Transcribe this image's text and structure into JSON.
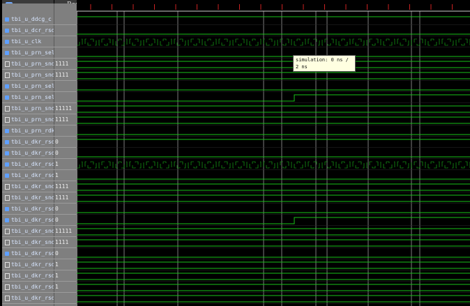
{
  "header": {
    "value_column_label": "Rap"
  },
  "signals": [
    {
      "name": "tbi_u_ddcg_c",
      "value": "",
      "kind": "bit",
      "wave": "high"
    },
    {
      "name": "tbi_u_dcr_rsdk",
      "value": "",
      "kind": "bit",
      "wave": "low"
    },
    {
      "name": "tbi_u_clk",
      "value": "",
      "kind": "bit",
      "wave": "clock"
    },
    {
      "name": "tbi_u_prn_sel",
      "value": "",
      "kind": "bit",
      "wave": "low"
    },
    {
      "name": "tbi_u_prn_snd_1",
      "value": "1111",
      "kind": "bus",
      "wave": "bus"
    },
    {
      "name": "tbi_u_prn_snd_2",
      "value": "1111",
      "kind": "bus",
      "wave": "bus"
    },
    {
      "name": "tbi_u_prn_sel_c",
      "value": "",
      "kind": "bit",
      "wave": "low"
    },
    {
      "name": "tbi_u_prn_sel_d",
      "value": "",
      "kind": "bit",
      "wave": "step"
    },
    {
      "name": "tbi_u_prn_snd_3",
      "value": "11111",
      "kind": "bus",
      "wave": "bus"
    },
    {
      "name": "tbi_u_prn_snd_4",
      "value": "1111",
      "kind": "bus",
      "wave": "bus"
    },
    {
      "name": "tbi_u_prn_rdk_e",
      "value": "",
      "kind": "bit",
      "wave": "low"
    },
    {
      "name": "tbi_u_dkr_rsd_1",
      "value": "0",
      "kind": "bit",
      "wave": "high"
    },
    {
      "name": "tbi_u_dkr_rsd_2",
      "value": "0",
      "kind": "bit",
      "wave": "low"
    },
    {
      "name": "tbi_u_dkr_rsd_3",
      "value": "1",
      "kind": "bit",
      "wave": "clock"
    },
    {
      "name": "tbi_u_dkr_rsd_4",
      "value": "1",
      "kind": "bit",
      "wave": "low"
    },
    {
      "name": "tbi_u_dkr_snd_1",
      "value": "1111",
      "kind": "bus",
      "wave": "bus"
    },
    {
      "name": "tbi_u_dkr_snd_2",
      "value": "1111",
      "kind": "bus",
      "wave": "bus"
    },
    {
      "name": "tbi_u_dkr_rsd_5",
      "value": "0",
      "kind": "bit",
      "wave": "low"
    },
    {
      "name": "tbi_u_dkr_rsd_6",
      "value": "0",
      "kind": "bit",
      "wave": "step"
    },
    {
      "name": "tbi_u_dkr_snd_3",
      "value": "11111",
      "kind": "bus",
      "wave": "bus"
    },
    {
      "name": "tbi_u_dkr_snd_4",
      "value": "1111",
      "kind": "bus",
      "wave": "bus"
    },
    {
      "name": "tbi_u_dkr_rsd_7",
      "value": "0",
      "kind": "bit",
      "wave": "low"
    },
    {
      "name": "tbi_u_dkr_rsd_8",
      "value": "1",
      "kind": "bus",
      "wave": "bus"
    },
    {
      "name": "tbi_u_dkr_rsd_9",
      "value": "1",
      "kind": "bus",
      "wave": "bus"
    },
    {
      "name": "tbi_u_dkr_rsd_10",
      "value": "1",
      "kind": "bus",
      "wave": "bus"
    },
    {
      "name": "tbi_u_dkr_rsd_11",
      "value": "",
      "kind": "bus",
      "wave": "bus"
    }
  ],
  "tooltip": {
    "text": "simulation: 0 ns / 2 ns"
  },
  "colors": {
    "wave": "#19c219",
    "grid": "#cfcfcf",
    "panel": "#7f7f7f",
    "marker": "#cc2222"
  }
}
